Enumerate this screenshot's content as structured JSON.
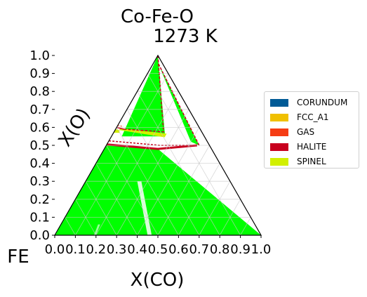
{
  "chart_data": {
    "type": "ternary phase diagram",
    "title_line1": "Co-Fe-O",
    "title_line2": "1273  K",
    "corner_label": "FE",
    "xlabel": "X(CO)",
    "ylabel": "X(O)",
    "x_ticks": [
      "0.0",
      "0.1",
      "0.2",
      "0.3",
      "0.4",
      "0.5",
      "0.6",
      "0.7",
      "0.8",
      "0.9",
      "1.0"
    ],
    "y_ticks": [
      "0.0",
      "0.1",
      "0.2",
      "0.3",
      "0.4",
      "0.5",
      "0.6",
      "0.7",
      "0.8",
      "0.9",
      "1.0"
    ],
    "xlim": [
      0,
      1
    ],
    "ylim": [
      0,
      1
    ],
    "grid": true,
    "legend_position": "right",
    "phases": [
      {
        "name": "CORUNDUM",
        "color": "#005a96"
      },
      {
        "name": "FCC_A1",
        "color": "#f0c000"
      },
      {
        "name": "GAS",
        "color": "#f53c14"
      },
      {
        "name": "HALITE",
        "color": "#c8001e"
      },
      {
        "name": "SPINEL",
        "color": "#d2f000"
      }
    ],
    "region_color": "#00ff00"
  }
}
